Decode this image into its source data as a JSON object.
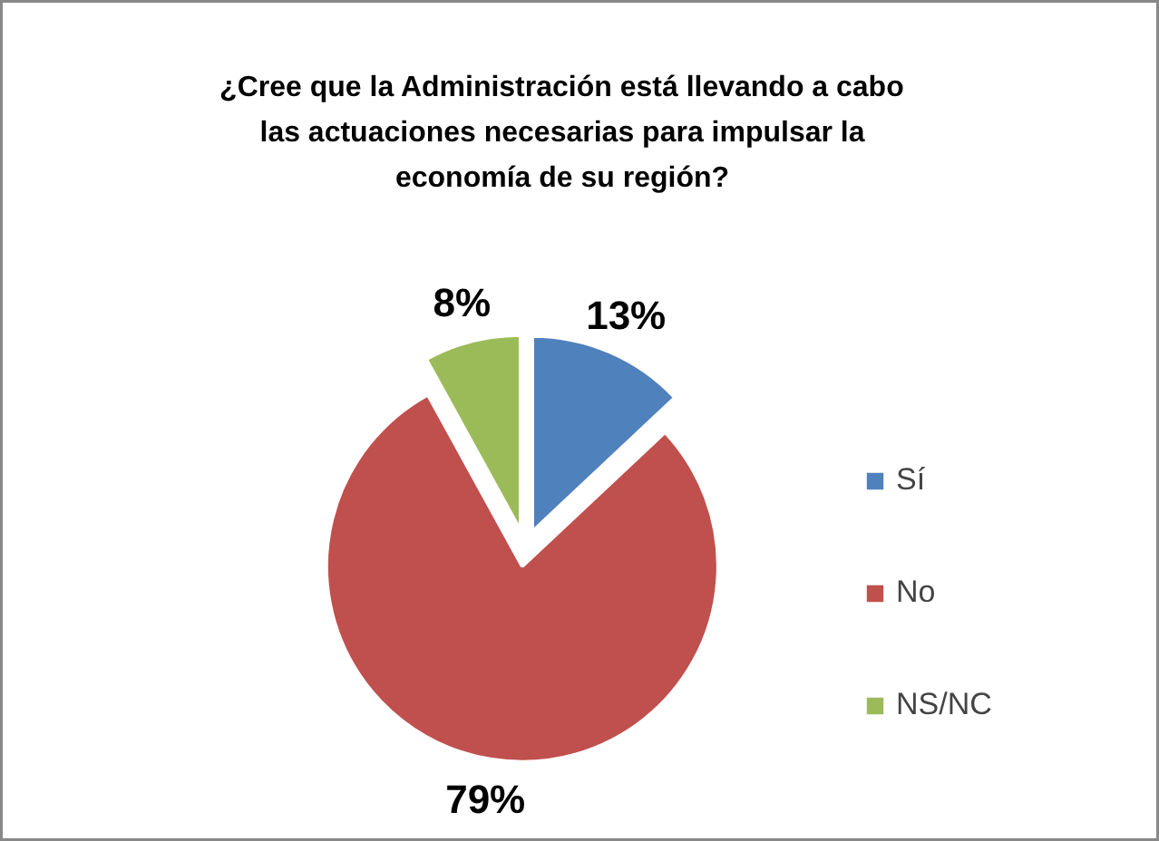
{
  "chart_data": {
    "type": "pie",
    "title": "¿Cree que la Administración está llevando a cabo las actuaciones necesarias para impulsar la economía de su región?",
    "categories": [
      "Sí",
      "No",
      "NS/NC"
    ],
    "values": [
      13,
      79,
      8
    ],
    "colors": [
      "#4f81bd",
      "#c0504d",
      "#9bbb59"
    ],
    "value_labels": [
      "13%",
      "79%",
      "8%"
    ],
    "legend": "right"
  }
}
